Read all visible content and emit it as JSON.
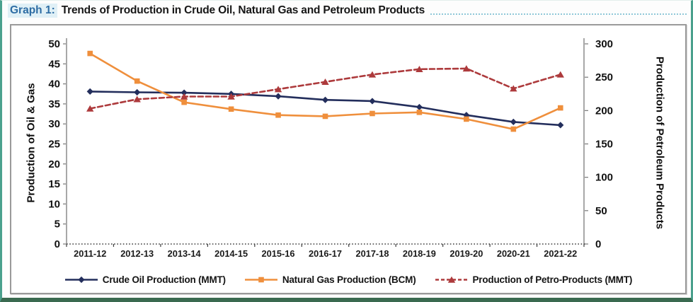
{
  "header": {
    "label": "Graph 1:",
    "title": "Trends of Production in Crude Oil, Natural Gas and Petroleum Products"
  },
  "colors": {
    "frame_side": "#4aa08d",
    "frame_bottom": "#3a6a50",
    "header_label_blue": "#2e6da4",
    "header_leader_dots": "#8fc8d8",
    "panel_border": "#9a9a9a",
    "axis_line": "#8c8c8c",
    "tick_text": "#111111"
  },
  "chart_data": {
    "type": "line",
    "title": "Trends of Production in Crude Oil, Natural Gas and Petroleum Products",
    "categories": [
      "2011-12",
      "2012-13",
      "2013-14",
      "2014-15",
      "2015-16",
      "2016-17",
      "2017-18",
      "2018-19",
      "2019-20",
      "2020-21",
      "2021-22"
    ],
    "series": [
      {
        "name": "Crude Oil Production (MMT)",
        "axis": "left",
        "color": "#232e5c",
        "marker": "diamond",
        "dash": null,
        "values": [
          38.1,
          37.9,
          37.8,
          37.5,
          36.9,
          36.0,
          35.7,
          34.2,
          32.2,
          30.5,
          29.7
        ]
      },
      {
        "name": "Natural Gas Production (BCM)",
        "axis": "left",
        "color": "#ef8f3c",
        "marker": "square",
        "dash": null,
        "values": [
          47.6,
          40.7,
          35.4,
          33.7,
          32.2,
          31.9,
          32.6,
          32.9,
          31.2,
          28.7,
          34.0
        ]
      },
      {
        "name": "Production of Petro-Products (MMT)",
        "axis": "right",
        "color": "#ad3a3c",
        "marker": "triangle",
        "dash": "7 4",
        "values": [
          203,
          217,
          221,
          221,
          232,
          243,
          254,
          262,
          263,
          233,
          254
        ]
      }
    ],
    "left_axis": {
      "label": "Production of Oil & Gas",
      "min": 0,
      "max": 50,
      "step": 5
    },
    "right_axis": {
      "label": "Production of Petroleum Products",
      "min": 0,
      "max": 300,
      "step": 50
    },
    "grid": false,
    "legend_position": "bottom"
  }
}
